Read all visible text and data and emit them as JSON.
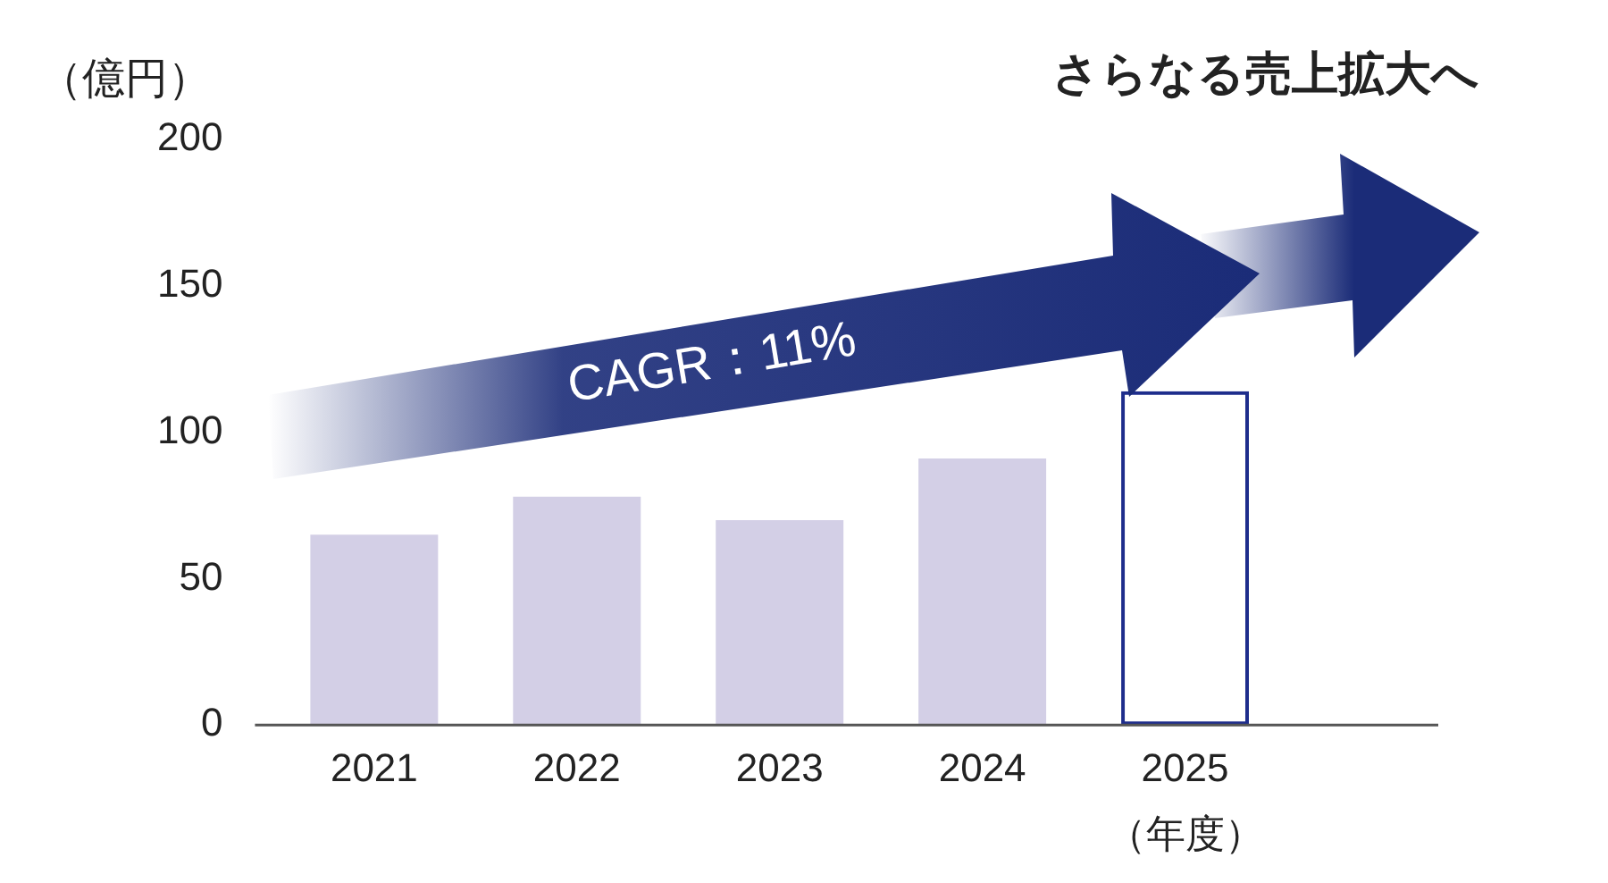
{
  "chart_data": {
    "type": "bar",
    "ylabel": "（億円）",
    "xlabel": "（年度）",
    "categories": [
      "2021",
      "2022",
      "2023",
      "2024",
      "2025"
    ],
    "series": [
      {
        "color": "#d3cfe6",
        "values": [
          65,
          78,
          70,
          91,
          null
        ]
      },
      {
        "color": "#1e2d8c",
        "values": [
          null,
          null,
          null,
          null,
          114
        ]
      }
    ],
    "stacked": true,
    "ylim": [
      0,
      200
    ],
    "yticks": [
      0,
      50,
      100,
      150,
      200
    ],
    "grid": false,
    "legend": false,
    "annotations": [
      "さらなる売上拡大へ",
      "CAGR：11%"
    ]
  }
}
